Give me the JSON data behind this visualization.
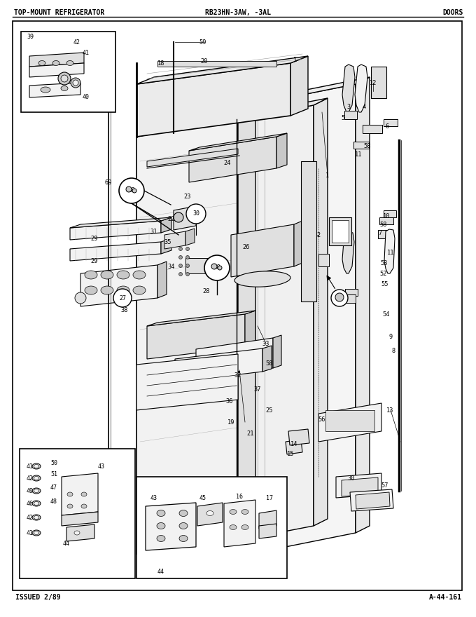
{
  "title_left": "TOP-MOUNT REFRIGERATOR",
  "title_center": "RB23HN-3AW, -3AL",
  "title_right": "DOORS",
  "footer_left": "ISSUED 2/89",
  "footer_right": "A-44-161",
  "bg_color": "#ffffff",
  "border_color": "#000000",
  "text_color": "#000000",
  "fig_width": 6.8,
  "fig_height": 8.8,
  "dpi": 100,
  "lc": "#000000",
  "fc_light": "#f2f2f2",
  "fc_mid": "#e0e0e0",
  "fc_dark": "#c8c8c8",
  "fc_white": "#ffffff"
}
